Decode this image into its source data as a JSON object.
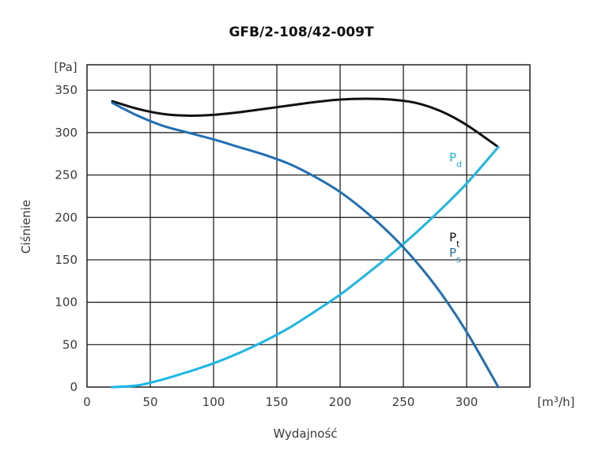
{
  "chart_data": {
    "type": "line",
    "title": "GFB/2-108/42-009T",
    "xlabel": "Wydajność",
    "ylabel": "Ciśnienie",
    "x_unit_prefix": "[m",
    "x_unit_power": "3",
    "x_unit_suffix": "/h]",
    "y_unit": "[Pa]",
    "xlim": [
      0,
      350
    ],
    "ylim": [
      0,
      380
    ],
    "x_ticks": [
      0,
      50,
      100,
      150,
      200,
      250,
      300
    ],
    "y_ticks": [
      0,
      50,
      100,
      150,
      200,
      250,
      300,
      350
    ],
    "grid": true,
    "series": [
      {
        "name": "P",
        "subscript": "t",
        "color": "#111111",
        "x": [
          20,
          40,
          60,
          80,
          100,
          120,
          140,
          160,
          180,
          200,
          220,
          240,
          260,
          280,
          300,
          325
        ],
        "y": [
          337,
          328,
          322,
          320,
          321,
          324,
          328,
          332,
          336,
          339,
          340,
          339,
          335,
          325,
          309,
          283
        ]
      },
      {
        "name": "P",
        "subscript": "d",
        "color": "#1ab8e8",
        "x": [
          20,
          40,
          60,
          80,
          100,
          120,
          140,
          160,
          180,
          200,
          220,
          240,
          260,
          280,
          300,
          325
        ],
        "y": [
          0,
          2,
          9,
          18,
          28,
          40,
          54,
          70,
          89,
          109,
          132,
          156,
          182,
          210,
          240,
          283
        ]
      },
      {
        "name": "P",
        "subscript": "s",
        "color": "#1e6fb5",
        "x": [
          20,
          40,
          60,
          80,
          100,
          120,
          140,
          160,
          180,
          200,
          220,
          240,
          260,
          280,
          300,
          325
        ],
        "y": [
          335,
          320,
          308,
          300,
          292,
          283,
          274,
          263,
          248,
          230,
          207,
          180,
          148,
          110,
          65,
          0
        ]
      }
    ]
  }
}
